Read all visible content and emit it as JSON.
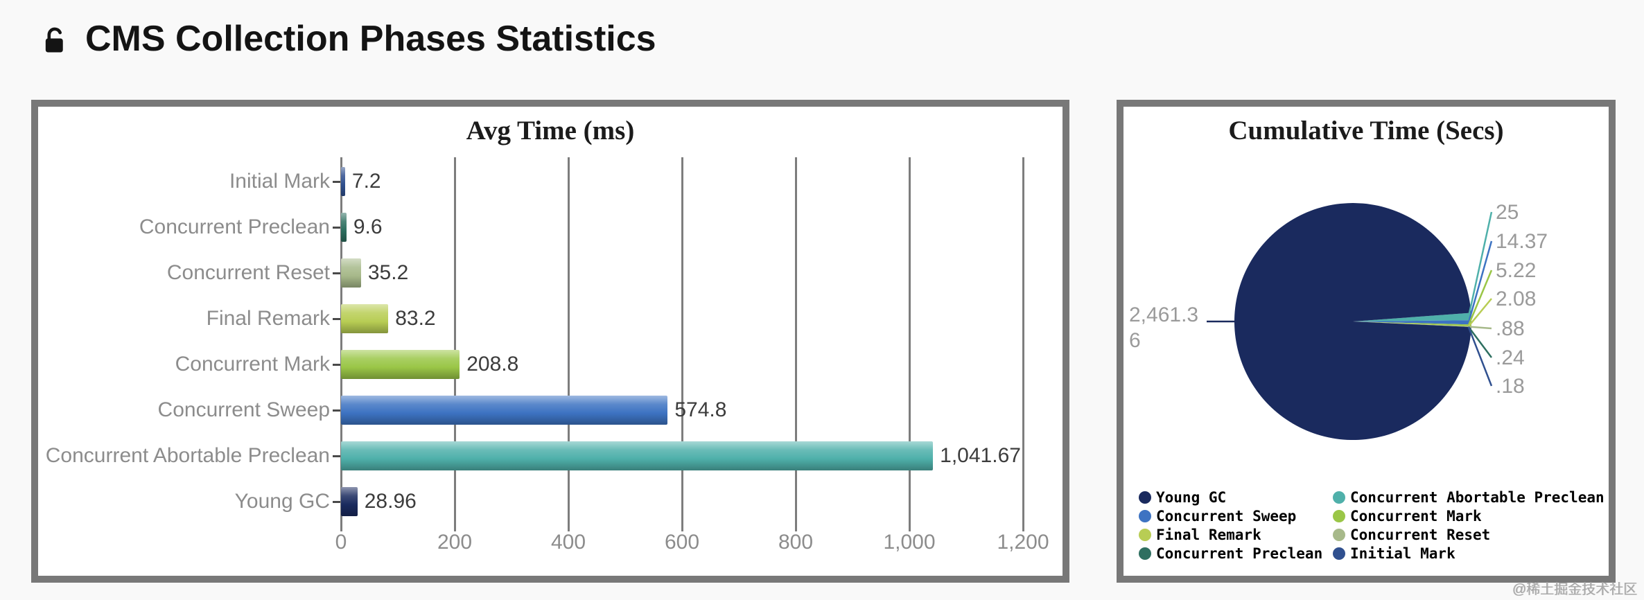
{
  "page": {
    "title": "CMS Collection Phases Statistics",
    "watermark": "@稀土掘金技术社区"
  },
  "chart_data": [
    {
      "type": "bar",
      "orientation": "horizontal",
      "title": "Avg Time (ms)",
      "categories": [
        "Initial Mark",
        "Concurrent Preclean",
        "Concurrent Reset",
        "Final Remark",
        "Concurrent Mark",
        "Concurrent Sweep",
        "Concurrent Abortable Preclean",
        "Young GC"
      ],
      "values": [
        7.2,
        9.6,
        35.2,
        83.2,
        208.8,
        574.8,
        1041.67,
        28.96
      ],
      "value_labels": [
        "7.2",
        "9.6",
        "35.2",
        "83.2",
        "208.8",
        "574.8",
        "1,041.67",
        "28.96"
      ],
      "bar_colors": [
        "#30508f",
        "#2e6f60",
        "#a7b98a",
        "#b8cd54",
        "#9ac647",
        "#3d73c2",
        "#4fb0aa",
        "#1a2a5e"
      ],
      "xlim": [
        0,
        1200
      ],
      "x_ticks": [
        "0",
        "200",
        "400",
        "600",
        "800",
        "1,000",
        "1,200"
      ],
      "grid": true,
      "legend_position": "none"
    },
    {
      "type": "pie",
      "title": "Cumulative Time (Secs)",
      "slices": [
        {
          "label": "Young GC",
          "value": 2461.36,
          "display": "2,461.36",
          "color": "#1a2a5e"
        },
        {
          "label": "Concurrent Abortable Preclean",
          "value": 25,
          "display": "25",
          "color": "#4fb0aa"
        },
        {
          "label": "Concurrent Sweep",
          "value": 14.37,
          "display": "14.37",
          "color": "#3d73c2"
        },
        {
          "label": "Concurrent Mark",
          "value": 5.22,
          "display": "5.22",
          "color": "#9ac647"
        },
        {
          "label": "Final Remark",
          "value": 2.08,
          "display": "2.08",
          "color": "#b8cd54"
        },
        {
          "label": "Concurrent Reset",
          "value": 0.88,
          "display": ".88",
          "color": "#a7b98a"
        },
        {
          "label": "Concurrent Preclean",
          "value": 0.24,
          "display": ".24",
          "color": "#2e6f60"
        },
        {
          "label": "Initial Mark",
          "value": 0.18,
          "display": ".18",
          "color": "#30508f"
        }
      ],
      "legend_position": "bottom",
      "legend": [
        {
          "label": "Young GC",
          "color": "#1a2a5e"
        },
        {
          "label": "Concurrent Abortable Preclean",
          "color": "#4fb0aa"
        },
        {
          "label": "Concurrent Sweep",
          "color": "#3d73c2"
        },
        {
          "label": "Concurrent Mark",
          "color": "#9ac647"
        },
        {
          "label": "Final Remark",
          "color": "#b8cd54"
        },
        {
          "label": "Concurrent Reset",
          "color": "#a7b98a"
        },
        {
          "label": "Concurrent Preclean",
          "color": "#2e6f60"
        },
        {
          "label": "Initial Mark",
          "color": "#30508f"
        }
      ]
    }
  ]
}
